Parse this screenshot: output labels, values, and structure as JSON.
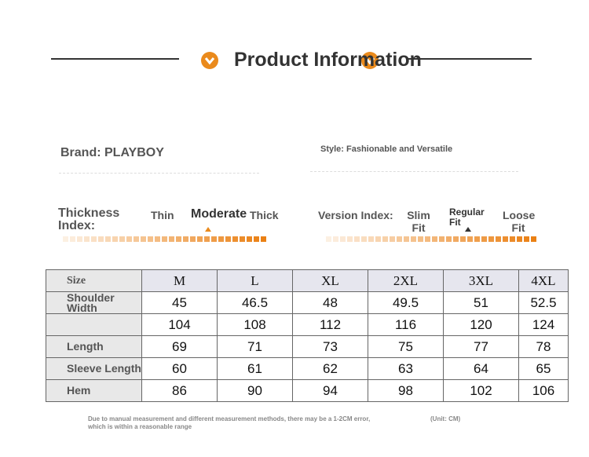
{
  "header": {
    "title": "Product Information"
  },
  "info": {
    "brand": "Brand: PLAYBOY",
    "style": "Style: Fashionable and Versatile"
  },
  "thickness": {
    "label": "Thickness Index:",
    "options": [
      "Thin",
      "Moderate",
      "Thick"
    ]
  },
  "version": {
    "label": "Version Index:",
    "options": [
      "Slim Fit",
      "Regular Fit",
      "Loose Fit"
    ]
  },
  "table": {
    "header": [
      "Size",
      "M",
      "L",
      "XL",
      "2XL",
      "3XL",
      "4XL"
    ],
    "rows": [
      {
        "label": "Shoulder Width",
        "values": [
          45,
          46.5,
          48,
          49.5,
          51,
          52.5
        ]
      },
      {
        "values": [
          104,
          108,
          112,
          116,
          120,
          124
        ]
      },
      {
        "label": "Length",
        "values": [
          69,
          71,
          73,
          75,
          77,
          78
        ]
      },
      {
        "label": "Sleeve Length",
        "values": [
          60,
          61,
          62,
          63,
          64,
          65
        ]
      },
      {
        "label": "Hem",
        "values": [
          86,
          90,
          94,
          98,
          102,
          106
        ]
      }
    ]
  },
  "notes": {
    "disclaimer": "Due to manual measurement and different measurement methods, there may be a 1-2CM error, which is within a reasonable range",
    "unit": "(Unit: CM)"
  }
}
